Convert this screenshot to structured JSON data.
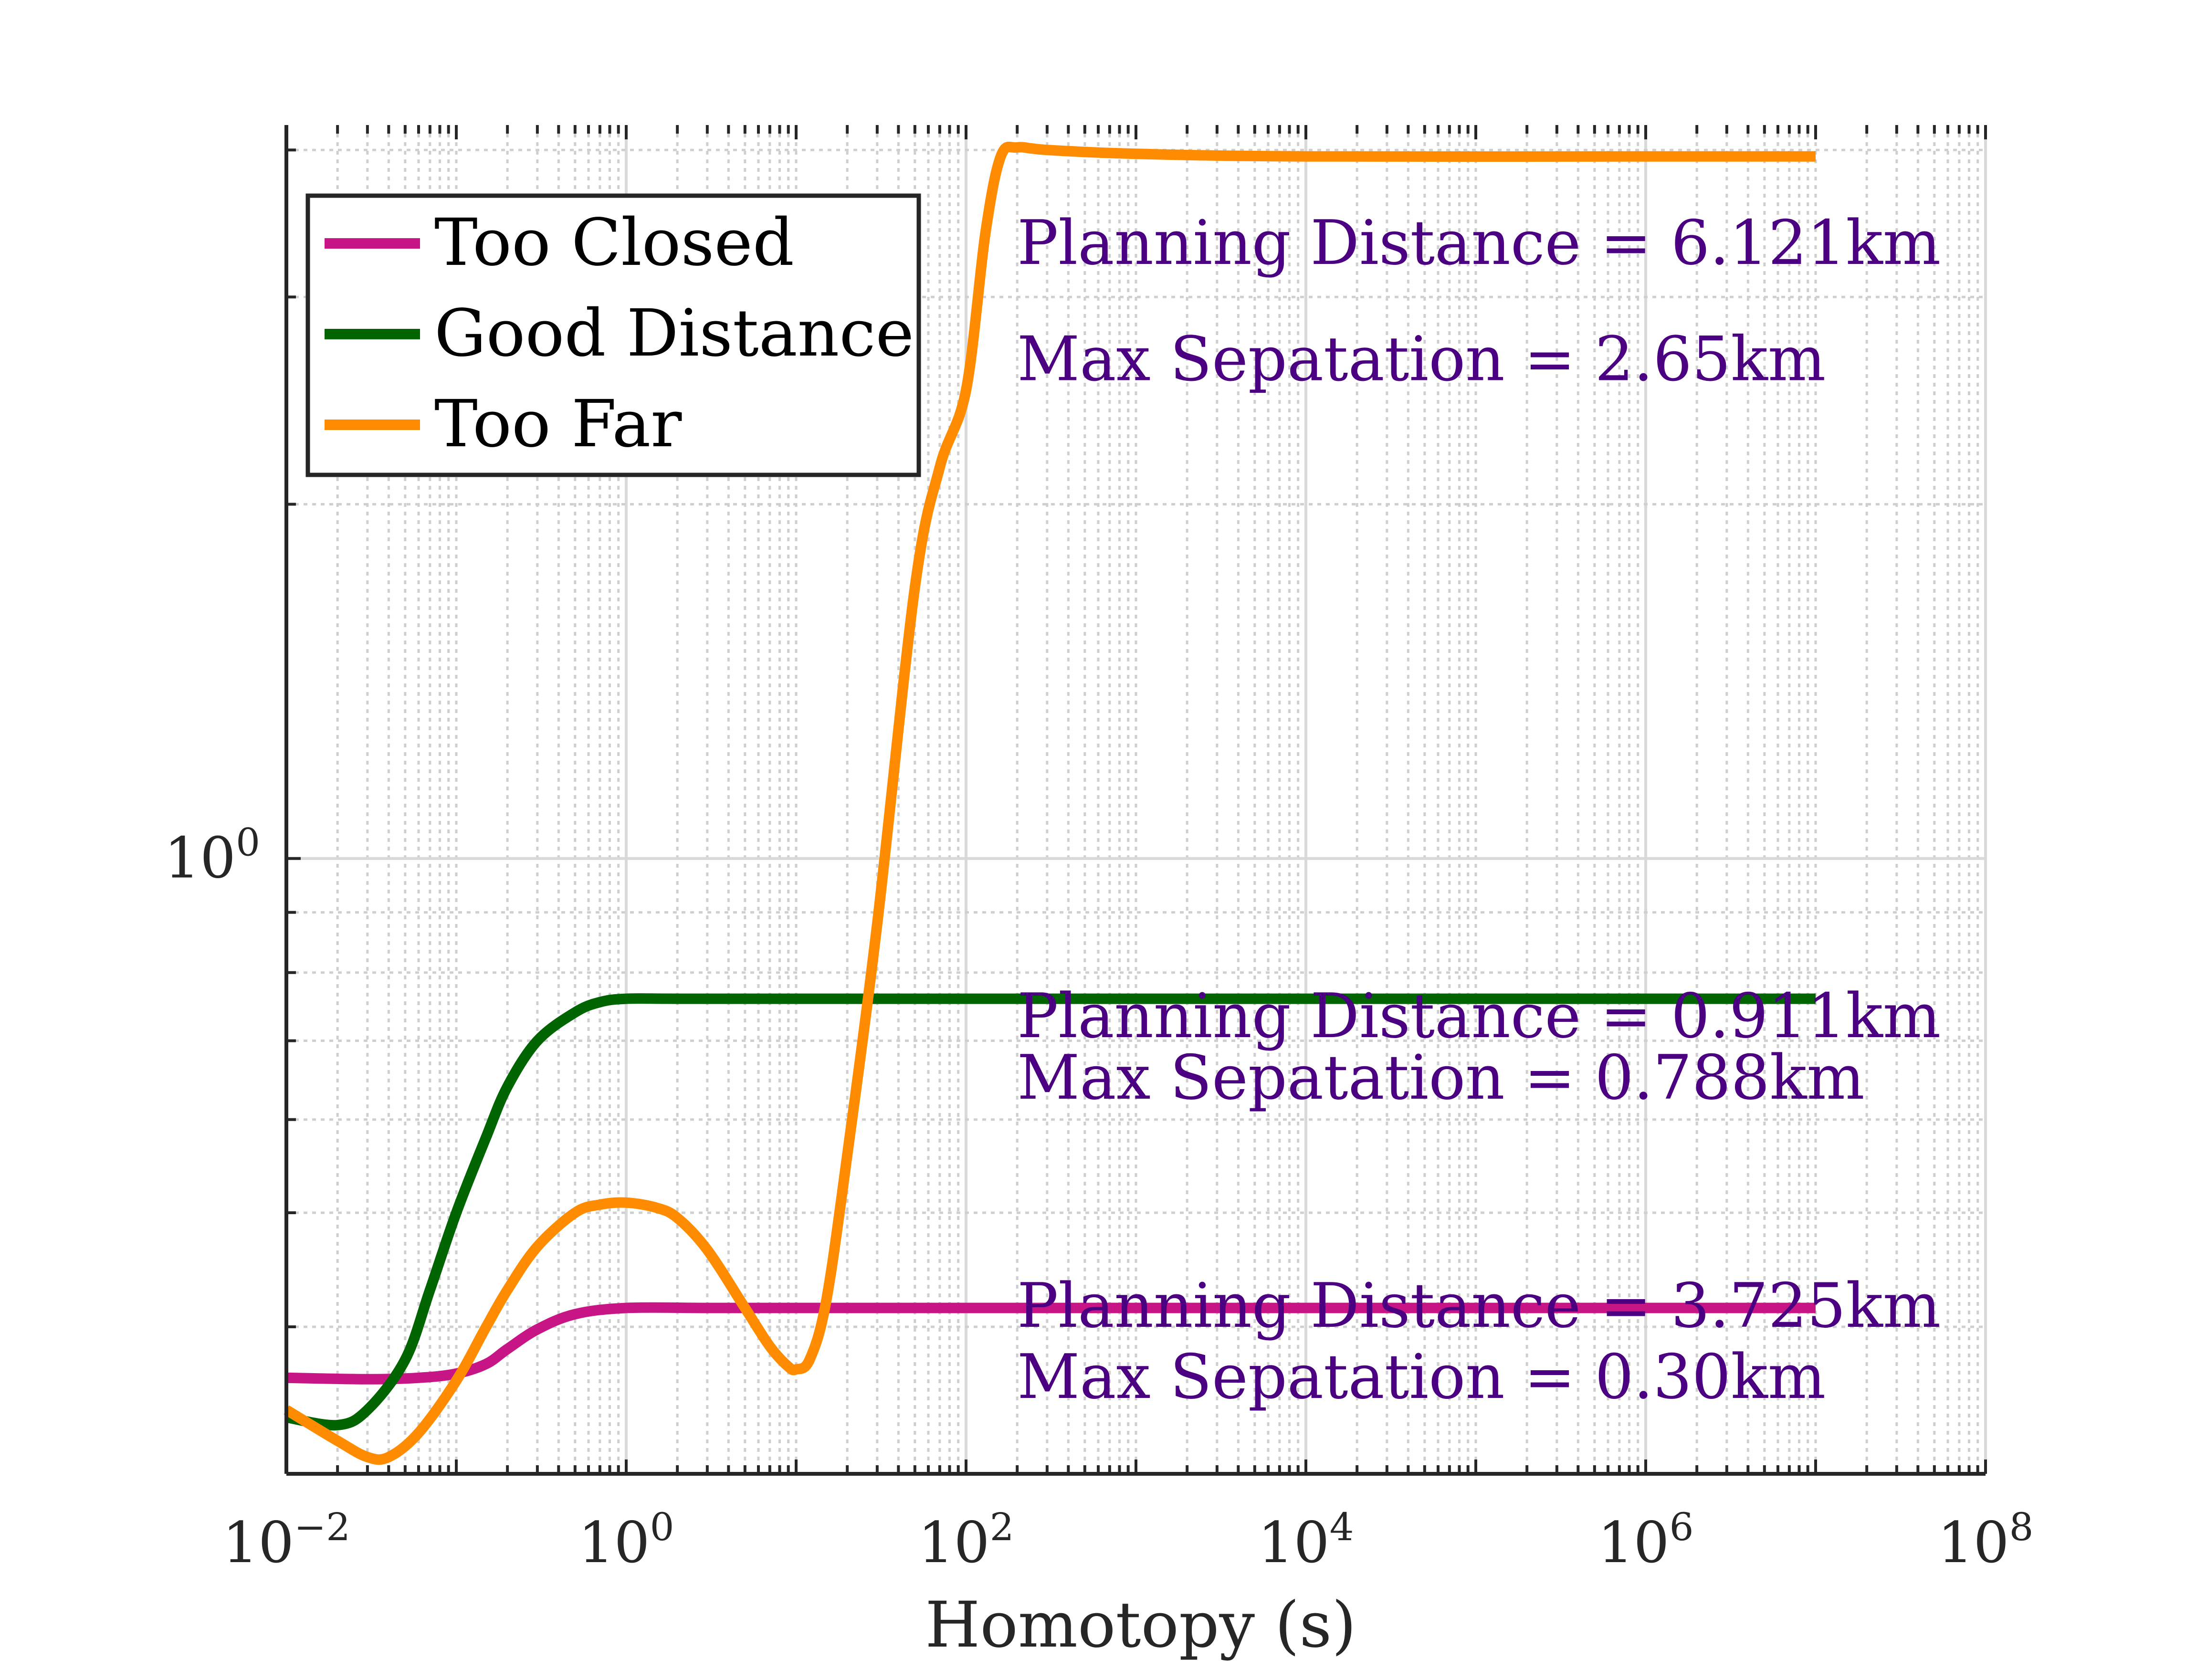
{
  "chart_data": {
    "type": "line",
    "xscale": "log",
    "yscale": "log",
    "xlim": [
      0.01,
      100000000
    ],
    "ylim": [
      0.3,
      4.2
    ],
    "xlabel": "Homotopy (s)",
    "x_ticks": [
      {
        "value": 0.01,
        "base": "10",
        "exp": "−2"
      },
      {
        "value": 1,
        "base": "10",
        "exp": "0"
      },
      {
        "value": 100,
        "base": "10",
        "exp": "2"
      },
      {
        "value": 10000,
        "base": "10",
        "exp": "4"
      },
      {
        "value": 1000000,
        "base": "10",
        "exp": "6"
      },
      {
        "value": 100000000,
        "base": "10",
        "exp": "8"
      }
    ],
    "y_ticks": [
      {
        "value": 1,
        "base": "10",
        "exp": "0"
      }
    ],
    "y_minor_ticks": [
      0.3,
      0.4,
      0.5,
      0.6,
      0.7,
      0.8,
      0.9,
      2,
      3,
      4
    ],
    "grid": true,
    "legend_position": "top-left",
    "series": [
      {
        "name": "Too Closed",
        "color": "#c71585",
        "x": [
          0.01,
          0.03,
          0.06,
          0.1,
          0.15,
          0.2,
          0.3,
          0.5,
          1,
          3,
          10,
          100,
          10000,
          1000000,
          10000000
        ],
        "y": [
          0.362,
          0.361,
          0.362,
          0.365,
          0.372,
          0.383,
          0.398,
          0.41,
          0.415,
          0.415,
          0.415,
          0.415,
          0.415,
          0.415,
          0.415
        ]
      },
      {
        "name": "Good Distance",
        "color": "#006400",
        "x": [
          0.01,
          0.02,
          0.03,
          0.05,
          0.07,
          0.1,
          0.15,
          0.2,
          0.3,
          0.5,
          0.7,
          1,
          2,
          10,
          100,
          10000,
          1000000,
          10000000
        ],
        "y": [
          0.335,
          0.33,
          0.34,
          0.375,
          0.43,
          0.5,
          0.58,
          0.64,
          0.7,
          0.74,
          0.755,
          0.76,
          0.76,
          0.76,
          0.76,
          0.76,
          0.76,
          0.76
        ]
      },
      {
        "name": "Too Far",
        "color": "#ff8c00",
        "x": [
          0.01,
          0.02,
          0.03,
          0.04,
          0.06,
          0.1,
          0.15,
          0.2,
          0.3,
          0.5,
          0.7,
          1,
          1.5,
          2,
          3,
          5,
          7,
          9,
          10,
          12,
          15,
          20,
          30,
          50,
          70,
          100,
          130,
          160,
          200,
          300,
          1000,
          10000,
          1000000,
          10000000
        ],
        "y": [
          0.34,
          0.32,
          0.31,
          0.31,
          0.325,
          0.36,
          0.4,
          0.43,
          0.468,
          0.5,
          0.508,
          0.51,
          0.505,
          0.495,
          0.465,
          0.415,
          0.385,
          0.37,
          0.368,
          0.375,
          0.42,
          0.56,
          0.88,
          1.7,
          2.15,
          2.5,
          3.4,
          3.95,
          4.02,
          4.0,
          3.97,
          3.95,
          3.95,
          3.95
        ]
      }
    ],
    "annotations": [
      {
        "line1": "Planning Distance = 6.121km",
        "line2": "Max Sepatation = 2.65km",
        "x": 200,
        "y1": 3.2,
        "y2": 2.55
      },
      {
        "line1": "Planning Distance = 0.911km",
        "line2": "Max Sepatation = 0.788km",
        "x": 200,
        "y1": 0.705,
        "y2": 0.625
      },
      {
        "line1": "Planning Distance = 3.725km",
        "line2": "Max Sepatation = 0.30km",
        "x": 200,
        "y1": 0.4,
        "y2": 0.348
      }
    ]
  }
}
